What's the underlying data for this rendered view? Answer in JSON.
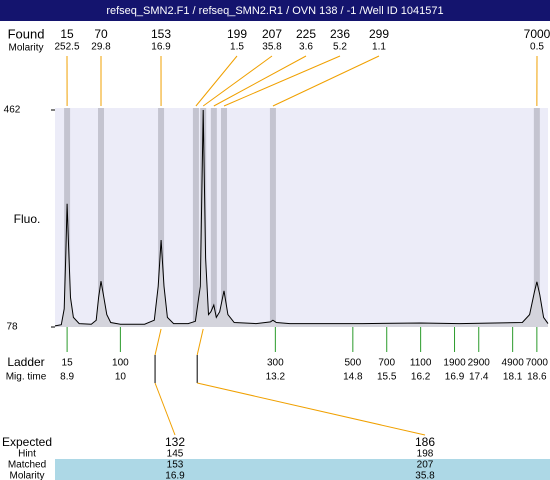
{
  "chart_data": {
    "type": "electropherogram",
    "title": "refseq_SMN2.F1 / refseq_SMN2.R1 / OVN 138 / -1 /Well ID 1041571",
    "ylabel": "Fluo.",
    "ylim": [
      78,
      462
    ],
    "yticks": [
      78,
      462
    ],
    "xlim": [
      8.65,
      18.83
    ],
    "trace": {
      "x": [
        8.65,
        8.78,
        8.84,
        8.87,
        8.9,
        8.93,
        8.97,
        9.03,
        9.15,
        9.4,
        9.5,
        9.55,
        9.6,
        9.65,
        9.72,
        9.8,
        10.0,
        10.5,
        10.7,
        10.78,
        10.84,
        10.9,
        10.97,
        11.1,
        11.4,
        11.55,
        11.65,
        11.71,
        11.76,
        11.82,
        11.87,
        11.93,
        11.98,
        12.05,
        12.14,
        12.22,
        12.35,
        12.8,
        13.1,
        13.15,
        13.22,
        13.5,
        15.0,
        16.2,
        17.0,
        18.3,
        18.45,
        18.55,
        18.6,
        18.66,
        18.74,
        18.83
      ],
      "y": [
        80,
        82,
        110,
        200,
        296,
        220,
        130,
        95,
        84,
        83,
        90,
        130,
        159,
        135,
        100,
        86,
        83,
        83,
        90,
        150,
        232,
        150,
        95,
        84,
        84,
        88,
        150,
        462,
        200,
        100,
        105,
        117,
        95,
        105,
        142,
        100,
        86,
        84,
        87,
        90,
        86,
        84,
        84,
        85,
        84,
        86,
        100,
        140,
        158,
        135,
        95,
        84
      ]
    },
    "found": {
      "label": "Found",
      "molarity_label": "Molarity",
      "sizes": [
        15,
        70,
        153,
        199,
        207,
        225,
        236,
        299,
        7000
      ],
      "molarity": [
        252.5,
        29.8,
        16.9,
        1.5,
        35.8,
        3.6,
        5.2,
        1.1,
        0.5
      ],
      "times": [
        8.9,
        9.6,
        10.84,
        11.56,
        11.71,
        11.93,
        12.14,
        13.15,
        18.6
      ]
    },
    "ladder": {
      "label": "Ladder",
      "time_label": "Mig. time",
      "sizes": [
        15,
        100,
        300,
        500,
        700,
        1100,
        1900,
        2900,
        4900,
        7000
      ],
      "times": [
        8.9,
        10,
        13.2,
        14.8,
        15.5,
        16.2,
        16.9,
        17.4,
        18.1,
        18.6
      ]
    },
    "matching": {
      "labels": {
        "expected": "Expected",
        "hint": "Hint",
        "matched": "Matched",
        "molarity": "Molarity"
      },
      "columns": [
        {
          "expected": 132,
          "hint": 145,
          "matched": 153,
          "molarity": 16.9
        },
        {
          "expected": 186,
          "hint": 198,
          "matched": 207,
          "molarity": 35.8
        }
      ]
    }
  }
}
